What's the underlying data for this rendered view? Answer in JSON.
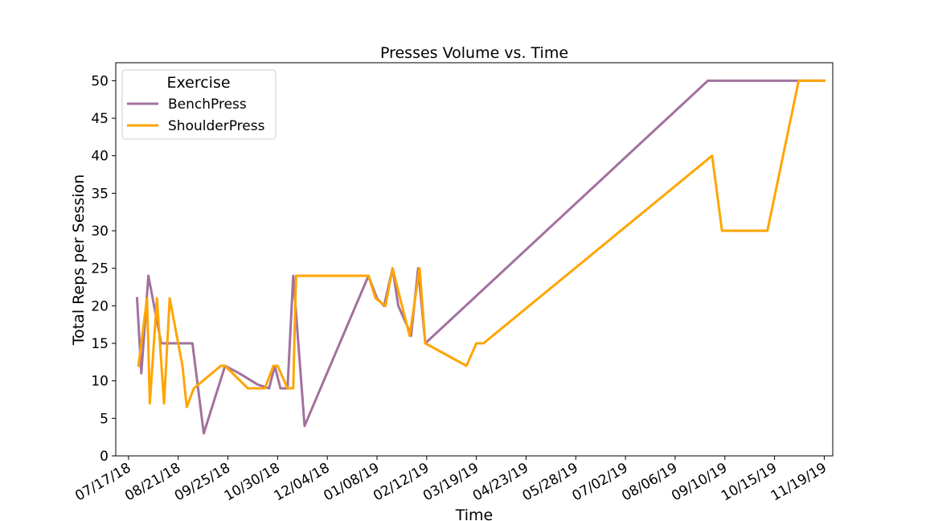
{
  "chart_data": {
    "type": "line",
    "title": "Presses Volume vs. Time",
    "xlabel": "Time",
    "ylabel": "Total Reps per Session",
    "x_scale": "date",
    "xlim": [
      "2018-07-08",
      "2019-11-25"
    ],
    "ylim": [
      0,
      52.4
    ],
    "x_ticks": [
      "2018-07-17",
      "2018-08-21",
      "2018-09-25",
      "2018-10-30",
      "2018-12-04",
      "2019-01-08",
      "2019-02-12",
      "2019-03-19",
      "2019-04-23",
      "2019-05-28",
      "2019-07-02",
      "2019-08-06",
      "2019-09-10",
      "2019-10-15",
      "2019-11-19"
    ],
    "x_tick_labels": [
      "07/17/18",
      "08/21/18",
      "09/25/18",
      "10/30/18",
      "12/04/18",
      "01/08/19",
      "02/12/19",
      "03/19/19",
      "04/23/19",
      "05/28/19",
      "07/02/19",
      "08/06/19",
      "09/10/19",
      "10/15/19",
      "11/19/19"
    ],
    "y_ticks": [
      0,
      5,
      10,
      15,
      20,
      25,
      30,
      35,
      40,
      45,
      50
    ],
    "y_tick_labels": [
      "0",
      "5",
      "10",
      "15",
      "20",
      "25",
      "30",
      "35",
      "40",
      "45",
      "50"
    ],
    "grid": false,
    "legend": {
      "title": "Exercise",
      "position": "top-left"
    },
    "series": [
      {
        "name": "BenchPress",
        "color": "#a2719e",
        "points": [
          [
            "2018-07-23",
            21
          ],
          [
            "2018-07-26",
            11
          ],
          [
            "2018-07-31",
            24
          ],
          [
            "2018-08-04",
            20
          ],
          [
            "2018-08-09",
            15
          ],
          [
            "2018-08-14",
            15
          ],
          [
            "2018-08-20",
            15
          ],
          [
            "2018-08-26",
            15
          ],
          [
            "2018-08-31",
            15
          ],
          [
            "2018-09-08",
            3
          ],
          [
            "2018-09-23",
            12
          ],
          [
            "2018-10-03",
            11
          ],
          [
            "2018-10-16",
            9.5
          ],
          [
            "2018-10-24",
            9
          ],
          [
            "2018-10-28",
            12
          ],
          [
            "2018-11-01",
            9
          ],
          [
            "2018-11-06",
            9
          ],
          [
            "2018-11-10",
            24
          ],
          [
            "2018-11-18",
            4
          ],
          [
            "2019-01-02",
            24
          ],
          [
            "2019-01-08",
            21
          ],
          [
            "2019-01-13",
            20
          ],
          [
            "2019-01-19",
            25
          ],
          [
            "2019-01-23",
            20
          ],
          [
            "2019-01-30",
            17
          ],
          [
            "2019-02-01",
            16
          ],
          [
            "2019-02-06",
            25
          ],
          [
            "2019-02-11",
            15
          ],
          [
            "2019-08-29",
            50
          ],
          [
            "2019-10-30",
            50
          ],
          [
            "2019-11-19",
            50
          ]
        ]
      },
      {
        "name": "ShoulderPress",
        "color": "#ffa500",
        "points": [
          [
            "2018-07-24",
            12
          ],
          [
            "2018-07-30",
            21
          ],
          [
            "2018-08-01",
            7
          ],
          [
            "2018-08-06",
            21
          ],
          [
            "2018-08-11",
            7
          ],
          [
            "2018-08-15",
            21
          ],
          [
            "2018-08-24",
            12
          ],
          [
            "2018-08-27",
            6.5
          ],
          [
            "2018-09-01",
            9
          ],
          [
            "2018-09-20",
            12
          ],
          [
            "2018-09-23",
            12
          ],
          [
            "2018-10-09",
            9
          ],
          [
            "2018-10-21",
            9
          ],
          [
            "2018-10-27",
            12
          ],
          [
            "2018-10-30",
            12
          ],
          [
            "2018-11-06",
            9
          ],
          [
            "2018-11-10",
            9
          ],
          [
            "2018-11-12",
            24
          ],
          [
            "2019-01-02",
            24
          ],
          [
            "2019-01-07",
            21
          ],
          [
            "2019-01-14",
            20
          ],
          [
            "2019-01-19",
            25
          ],
          [
            "2019-01-31",
            16
          ],
          [
            "2019-02-07",
            25
          ],
          [
            "2019-02-11",
            15
          ],
          [
            "2019-03-12",
            12
          ],
          [
            "2019-03-19",
            15
          ],
          [
            "2019-03-24",
            15
          ],
          [
            "2019-09-01",
            40
          ],
          [
            "2019-09-08",
            30
          ],
          [
            "2019-10-10",
            30
          ],
          [
            "2019-11-01",
            50
          ],
          [
            "2019-11-19",
            50
          ]
        ]
      }
    ]
  }
}
